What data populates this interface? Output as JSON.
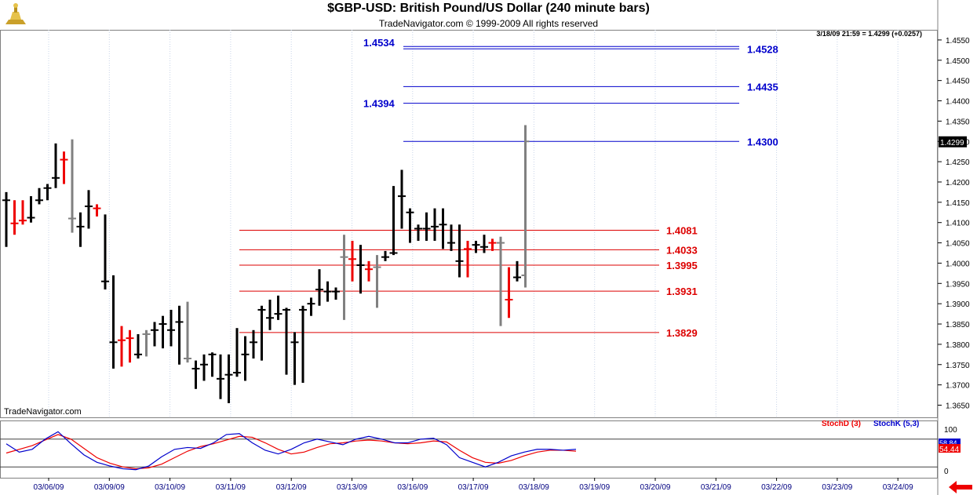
{
  "header": {
    "title": "$GBP-USD:  British Pound/US Dollar  (240 minute bars)",
    "subtitle": "TradeNavigator.com © 1999-2009 All rights reserved",
    "quote": "3/18/09 21:59 = 1.4299 (+0.0257)",
    "watermark": "TradeNavigator.com"
  },
  "colors": {
    "up_bar": "#000000",
    "down_bar": "#ee0000",
    "neutral_bar": "#808080",
    "blue_levels": "#0000cc",
    "red_levels": "#dd0000",
    "stoch_d": "#ee0000",
    "stoch_k": "#0000cc"
  },
  "chart_data": [
    {
      "type": "ohlc",
      "ylim": [
        1.362,
        1.4575
      ],
      "price_ticks": [
        "1.4550",
        "1.4500",
        "1.4450",
        "1.4400",
        "1.4350",
        "1.4300",
        "1.4250",
        "1.4200",
        "1.4150",
        "1.4100",
        "1.4050",
        "1.4000",
        "1.3950",
        "1.3900",
        "1.3850",
        "1.3800",
        "1.3750",
        "1.3700",
        "1.3650"
      ],
      "last_price": "1.4299",
      "date_labels": [
        "03/06/09",
        "03/09/09",
        "03/10/09",
        "03/11/09",
        "03/12/09",
        "03/13/09",
        "03/16/09",
        "03/17/09",
        "03/18/09",
        "03/19/09",
        "03/20/09",
        "03/21/09",
        "03/22/09",
        "03/23/09",
        "03/24/09"
      ],
      "levels_blue": [
        {
          "label": "1.4534",
          "value": 1.4534,
          "side": "left"
        },
        {
          "label": "1.4528",
          "value": 1.4528,
          "side": "right"
        },
        {
          "label": "1.4435",
          "value": 1.4435,
          "side": "right"
        },
        {
          "label": "1.4394",
          "value": 1.4394,
          "side": "left"
        },
        {
          "label": "1.4300",
          "value": 1.43,
          "side": "right"
        }
      ],
      "levels_red": [
        {
          "label": "1.4081",
          "value": 1.4081
        },
        {
          "label": "1.4033",
          "value": 1.4033
        },
        {
          "label": "1.3995",
          "value": 1.3995
        },
        {
          "label": "1.3931",
          "value": 1.3931
        },
        {
          "label": "1.3829",
          "value": 1.3829
        }
      ],
      "bars": [
        {
          "o": 1.4155,
          "h": 1.4175,
          "l": 1.404,
          "c": 1.4155,
          "k": "b"
        },
        {
          "o": 1.4098,
          "h": 1.4155,
          "l": 1.407,
          "c": 1.4098,
          "k": "r"
        },
        {
          "o": 1.4105,
          "h": 1.4155,
          "l": 1.4095,
          "c": 1.4105,
          "k": "r"
        },
        {
          "o": 1.4112,
          "h": 1.4165,
          "l": 1.41,
          "c": 1.4112,
          "k": "b"
        },
        {
          "o": 1.4155,
          "h": 1.4185,
          "l": 1.4145,
          "c": 1.4155,
          "k": "b"
        },
        {
          "o": 1.4185,
          "h": 1.4195,
          "l": 1.4155,
          "c": 1.4185,
          "k": "b"
        },
        {
          "o": 1.421,
          "h": 1.4295,
          "l": 1.4185,
          "c": 1.421,
          "k": "b"
        },
        {
          "o": 1.4255,
          "h": 1.4275,
          "l": 1.4195,
          "c": 1.4255,
          "k": "r"
        },
        {
          "o": 1.411,
          "h": 1.4305,
          "l": 1.4075,
          "c": 1.411,
          "k": "g"
        },
        {
          "o": 1.409,
          "h": 1.4125,
          "l": 1.404,
          "c": 1.409,
          "k": "b"
        },
        {
          "o": 1.414,
          "h": 1.418,
          "l": 1.4085,
          "c": 1.414,
          "k": "b"
        },
        {
          "o": 1.4135,
          "h": 1.4145,
          "l": 1.4115,
          "c": 1.4135,
          "k": "r"
        },
        {
          "o": 1.3955,
          "h": 1.412,
          "l": 1.3935,
          "c": 1.3955,
          "k": "b"
        },
        {
          "o": 1.3805,
          "h": 1.397,
          "l": 1.374,
          "c": 1.3805,
          "k": "b"
        },
        {
          "o": 1.381,
          "h": 1.3845,
          "l": 1.3745,
          "c": 1.381,
          "k": "r"
        },
        {
          "o": 1.3815,
          "h": 1.3835,
          "l": 1.3755,
          "c": 1.3815,
          "k": "r"
        },
        {
          "o": 1.3775,
          "h": 1.3825,
          "l": 1.3765,
          "c": 1.3775,
          "k": "b"
        },
        {
          "o": 1.3825,
          "h": 1.3835,
          "l": 1.377,
          "c": 1.3825,
          "k": "g"
        },
        {
          "o": 1.3835,
          "h": 1.3855,
          "l": 1.3795,
          "c": 1.3835,
          "k": "b"
        },
        {
          "o": 1.385,
          "h": 1.387,
          "l": 1.379,
          "c": 1.385,
          "k": "b"
        },
        {
          "o": 1.3835,
          "h": 1.3885,
          "l": 1.3795,
          "c": 1.3835,
          "k": "b"
        },
        {
          "o": 1.3855,
          "h": 1.3895,
          "l": 1.375,
          "c": 1.3855,
          "k": "b"
        },
        {
          "o": 1.3765,
          "h": 1.3905,
          "l": 1.3755,
          "c": 1.3765,
          "k": "g"
        },
        {
          "o": 1.374,
          "h": 1.376,
          "l": 1.369,
          "c": 1.374,
          "k": "b"
        },
        {
          "o": 1.375,
          "h": 1.3775,
          "l": 1.371,
          "c": 1.375,
          "k": "b"
        },
        {
          "o": 1.3775,
          "h": 1.378,
          "l": 1.372,
          "c": 1.3775,
          "k": "b"
        },
        {
          "o": 1.3715,
          "h": 1.3775,
          "l": 1.3665,
          "c": 1.3715,
          "k": "b"
        },
        {
          "o": 1.3725,
          "h": 1.3775,
          "l": 1.3655,
          "c": 1.3725,
          "k": "b"
        },
        {
          "o": 1.373,
          "h": 1.384,
          "l": 1.372,
          "c": 1.373,
          "k": "b"
        },
        {
          "o": 1.3775,
          "h": 1.382,
          "l": 1.371,
          "c": 1.3775,
          "k": "b"
        },
        {
          "o": 1.3805,
          "h": 1.3835,
          "l": 1.3765,
          "c": 1.3805,
          "k": "b"
        },
        {
          "o": 1.3885,
          "h": 1.3895,
          "l": 1.376,
          "c": 1.3885,
          "k": "b"
        },
        {
          "o": 1.3865,
          "h": 1.391,
          "l": 1.3835,
          "c": 1.3865,
          "k": "b"
        },
        {
          "o": 1.3875,
          "h": 1.392,
          "l": 1.386,
          "c": 1.3875,
          "k": "b"
        },
        {
          "o": 1.3885,
          "h": 1.389,
          "l": 1.3725,
          "c": 1.3885,
          "k": "b"
        },
        {
          "o": 1.3805,
          "h": 1.383,
          "l": 1.37,
          "c": 1.3805,
          "k": "b"
        },
        {
          "o": 1.3885,
          "h": 1.3895,
          "l": 1.3705,
          "c": 1.3885,
          "k": "b"
        },
        {
          "o": 1.39,
          "h": 1.3915,
          "l": 1.387,
          "c": 1.39,
          "k": "b"
        },
        {
          "o": 1.3935,
          "h": 1.3985,
          "l": 1.3895,
          "c": 1.3935,
          "k": "b"
        },
        {
          "o": 1.393,
          "h": 1.3955,
          "l": 1.3905,
          "c": 1.393,
          "k": "b"
        },
        {
          "o": 1.393,
          "h": 1.394,
          "l": 1.391,
          "c": 1.393,
          "k": "b"
        },
        {
          "o": 1.4015,
          "h": 1.407,
          "l": 1.386,
          "c": 1.4015,
          "k": "g"
        },
        {
          "o": 1.401,
          "h": 1.4055,
          "l": 1.3955,
          "c": 1.401,
          "k": "r"
        },
        {
          "o": 1.3995,
          "h": 1.4045,
          "l": 1.3925,
          "c": 1.3995,
          "k": "b"
        },
        {
          "o": 1.3985,
          "h": 1.4005,
          "l": 1.3955,
          "c": 1.3985,
          "k": "r"
        },
        {
          "o": 1.399,
          "h": 1.402,
          "l": 1.389,
          "c": 1.399,
          "k": "g"
        },
        {
          "o": 1.4015,
          "h": 1.403,
          "l": 1.4005,
          "c": 1.4015,
          "k": "b"
        },
        {
          "o": 1.4025,
          "h": 1.419,
          "l": 1.402,
          "c": 1.4025,
          "k": "b"
        },
        {
          "o": 1.4165,
          "h": 1.423,
          "l": 1.4085,
          "c": 1.4165,
          "k": "b"
        },
        {
          "o": 1.4125,
          "h": 1.4135,
          "l": 1.405,
          "c": 1.4125,
          "k": "b"
        },
        {
          "o": 1.4085,
          "h": 1.4095,
          "l": 1.4055,
          "c": 1.4085,
          "k": "b"
        },
        {
          "o": 1.4085,
          "h": 1.4125,
          "l": 1.4055,
          "c": 1.4085,
          "k": "b"
        },
        {
          "o": 1.409,
          "h": 1.4135,
          "l": 1.4055,
          "c": 1.409,
          "k": "b"
        },
        {
          "o": 1.4095,
          "h": 1.4135,
          "l": 1.4035,
          "c": 1.4095,
          "k": "b"
        },
        {
          "o": 1.405,
          "h": 1.4095,
          "l": 1.403,
          "c": 1.405,
          "k": "b"
        },
        {
          "o": 1.4005,
          "h": 1.4095,
          "l": 1.3965,
          "c": 1.4005,
          "k": "b"
        },
        {
          "o": 1.4035,
          "h": 1.4055,
          "l": 1.3965,
          "c": 1.4035,
          "k": "r"
        },
        {
          "o": 1.4045,
          "h": 1.4055,
          "l": 1.4025,
          "c": 1.4045,
          "k": "b"
        },
        {
          "o": 1.404,
          "h": 1.407,
          "l": 1.4025,
          "c": 1.404,
          "k": "b"
        },
        {
          "o": 1.405,
          "h": 1.406,
          "l": 1.403,
          "c": 1.405,
          "k": "r"
        },
        {
          "o": 1.405,
          "h": 1.4065,
          "l": 1.3845,
          "c": 1.405,
          "k": "g"
        },
        {
          "o": 1.391,
          "h": 1.399,
          "l": 1.3865,
          "c": 1.391,
          "k": "r"
        },
        {
          "o": 1.3965,
          "h": 1.4005,
          "l": 1.3955,
          "c": 1.3965,
          "k": "b"
        },
        {
          "o": 1.397,
          "h": 1.434,
          "l": 1.394,
          "c": 1.43,
          "k": "g"
        }
      ]
    },
    {
      "type": "line",
      "ylim": [
        0,
        100
      ],
      "y_ticks": [
        "100",
        "0"
      ],
      "legend": [
        {
          "label": "StochD (3)",
          "color": "#ee0000"
        },
        {
          "label": "StochK (5,3)",
          "color": "#0000cc"
        }
      ],
      "value_d": "54.44",
      "value_k": "58.84",
      "series": [
        {
          "name": "StochD (3)",
          "values": [
            50,
            58,
            66,
            78,
            90,
            80,
            60,
            40,
            28,
            20,
            16,
            18,
            26,
            40,
            54,
            64,
            70,
            78,
            86,
            84,
            72,
            58,
            48,
            52,
            62,
            70,
            72,
            76,
            78,
            76,
            72,
            70,
            72,
            76,
            74,
            56,
            40,
            30,
            28,
            34,
            44,
            52,
            56,
            56,
            54
          ]
        },
        {
          "name": "StochK (5,3)",
          "values": [
            70,
            52,
            58,
            80,
            96,
            70,
            46,
            30,
            22,
            16,
            14,
            22,
            42,
            58,
            62,
            60,
            72,
            90,
            92,
            72,
            56,
            48,
            58,
            72,
            80,
            74,
            68,
            80,
            86,
            80,
            72,
            72,
            80,
            82,
            68,
            40,
            30,
            20,
            30,
            44,
            52,
            58,
            58,
            56,
            58
          ]
        }
      ]
    }
  ]
}
